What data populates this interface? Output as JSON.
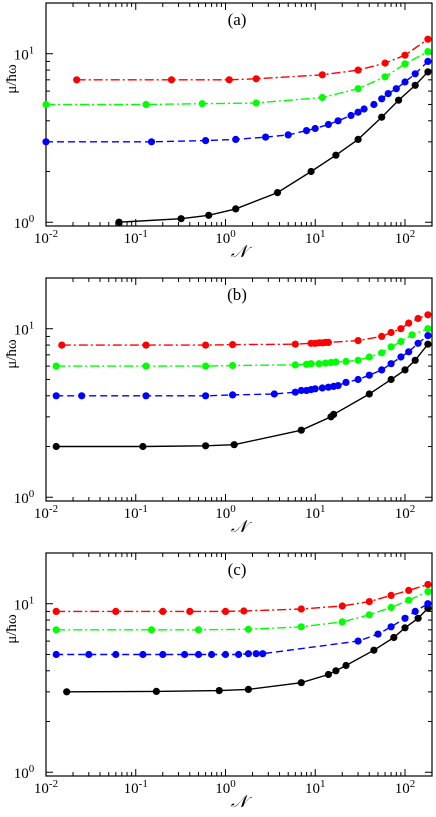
{
  "chart_data": [
    {
      "type": "line",
      "panel_label": "(a)",
      "xlabel": "𝒩",
      "ylabel": "μ/ħω",
      "x_scale": "log",
      "y_scale": "log",
      "xlim": [
        0.01,
        200
      ],
      "ylim": [
        0.95,
        20
      ],
      "x_ticks": [
        {
          "value": 0.01,
          "base": "10",
          "exp": "-2"
        },
        {
          "value": 0.1,
          "base": "10",
          "exp": "-1"
        },
        {
          "value": 1,
          "base": "10",
          "exp": "0"
        },
        {
          "value": 10,
          "base": "10",
          "exp": "1"
        },
        {
          "value": 100,
          "base": "10",
          "exp": "2"
        }
      ],
      "y_ticks": [
        {
          "value": 1,
          "base": "10",
          "exp": "0"
        },
        {
          "value": 10,
          "base": "10",
          "exp": "1"
        }
      ],
      "series": [
        {
          "color": "#000000",
          "dash": "solid",
          "x": [
            0.065,
            0.32,
            0.65,
            1.3,
            3.8,
            9,
            17,
            30,
            55,
            85,
            130,
            180
          ],
          "y": [
            1.0,
            1.05,
            1.1,
            1.2,
            1.5,
            2.0,
            2.5,
            3.1,
            4.2,
            5.3,
            6.5,
            7.8
          ]
        },
        {
          "color": "#0000ff",
          "dash": "dashed",
          "x": [
            0.01,
            0.15,
            0.6,
            1.3,
            2.8,
            5,
            8,
            10,
            14,
            18,
            25,
            30,
            35,
            45,
            55,
            65,
            80,
            100,
            130,
            180
          ],
          "y": [
            3.0,
            3.0,
            3.05,
            3.1,
            3.2,
            3.3,
            3.5,
            3.6,
            3.8,
            4.0,
            4.3,
            4.5,
            4.7,
            5.0,
            5.4,
            5.8,
            6.2,
            6.8,
            7.6,
            9.0
          ]
        },
        {
          "color": "#00ff00",
          "dash": "dashdot",
          "x": [
            0.01,
            0.13,
            0.55,
            2.2,
            12,
            30,
            60,
            100,
            180
          ],
          "y": [
            5.0,
            5.0,
            5.05,
            5.1,
            5.5,
            6.2,
            7.3,
            8.7,
            10.3
          ]
        },
        {
          "color": "#ff0000",
          "dash": "dashdot",
          "x": [
            0.022,
            0.25,
            1.1,
            2.2,
            12,
            30,
            60,
            100,
            180
          ],
          "y": [
            7.0,
            7.0,
            7.0,
            7.1,
            7.5,
            8.0,
            8.8,
            9.8,
            12.2
          ]
        }
      ]
    },
    {
      "type": "line",
      "panel_label": "(b)",
      "xlabel": "𝒩",
      "ylabel": "μ/ħω",
      "x_scale": "log",
      "y_scale": "log",
      "xlim": [
        0.01,
        200
      ],
      "ylim": [
        0.95,
        20
      ],
      "x_ticks": [
        {
          "value": 0.01,
          "base": "10",
          "exp": "-2"
        },
        {
          "value": 0.1,
          "base": "10",
          "exp": "-1"
        },
        {
          "value": 1,
          "base": "10",
          "exp": "0"
        },
        {
          "value": 10,
          "base": "10",
          "exp": "1"
        },
        {
          "value": 100,
          "base": "10",
          "exp": "2"
        }
      ],
      "y_ticks": [
        {
          "value": 1,
          "base": "10",
          "exp": "0"
        },
        {
          "value": 10,
          "base": "10",
          "exp": "1"
        }
      ],
      "series": [
        {
          "color": "#000000",
          "dash": "solid",
          "x": [
            0.013,
            0.12,
            0.6,
            1.25,
            7,
            15,
            16,
            40,
            70,
            100,
            130,
            180
          ],
          "y": [
            2.0,
            2.0,
            2.02,
            2.05,
            2.5,
            3.0,
            3.1,
            4.1,
            5.0,
            5.7,
            6.5,
            8.1
          ]
        },
        {
          "color": "#0000ff",
          "dash": "dashed",
          "x": [
            0.013,
            0.025,
            0.13,
            0.6,
            1.2,
            3.5,
            6,
            7,
            8,
            9,
            10,
            12,
            14,
            16,
            18,
            22,
            30,
            40,
            55,
            70,
            90,
            110,
            140,
            180
          ],
          "y": [
            4.0,
            4.0,
            4.0,
            4.0,
            4.05,
            4.1,
            4.2,
            4.3,
            4.3,
            4.35,
            4.4,
            4.45,
            4.5,
            4.55,
            4.6,
            4.8,
            5.0,
            5.3,
            5.7,
            6.2,
            6.8,
            7.3,
            8.2,
            9.1
          ]
        },
        {
          "color": "#00ff00",
          "dash": "dashdot",
          "x": [
            0.013,
            0.13,
            0.6,
            1.2,
            6,
            8,
            9,
            11,
            13,
            15,
            17,
            22,
            30,
            40,
            55,
            70,
            90,
            120,
            180
          ],
          "y": [
            6.0,
            6.0,
            6.0,
            6.05,
            6.1,
            6.15,
            6.2,
            6.2,
            6.25,
            6.3,
            6.35,
            6.4,
            6.5,
            6.8,
            7.2,
            7.8,
            8.4,
            9.2,
            10.0
          ]
        },
        {
          "color": "#ff0000",
          "dash": "dashdot",
          "x": [
            0.015,
            0.13,
            0.6,
            1.2,
            6,
            9,
            10,
            11,
            12,
            13,
            14,
            30,
            55,
            70,
            90,
            110,
            140,
            180
          ],
          "y": [
            8.0,
            8.0,
            8.0,
            8.05,
            8.1,
            8.2,
            8.2,
            8.25,
            8.25,
            8.3,
            8.3,
            8.5,
            9.0,
            9.5,
            10.0,
            10.8,
            11.5,
            12.1
          ]
        }
      ]
    },
    {
      "type": "line",
      "panel_label": "(c)",
      "xlabel": "𝒩",
      "ylabel": "μ/ħω",
      "x_scale": "log",
      "y_scale": "log",
      "xlim": [
        0.01,
        200
      ],
      "ylim": [
        0.95,
        20
      ],
      "x_ticks": [
        {
          "value": 0.01,
          "base": "10",
          "exp": "-2"
        },
        {
          "value": 0.1,
          "base": "10",
          "exp": "-1"
        },
        {
          "value": 1,
          "base": "10",
          "exp": "0"
        },
        {
          "value": 10,
          "base": "10",
          "exp": "1"
        },
        {
          "value": 100,
          "base": "10",
          "exp": "2"
        }
      ],
      "y_ticks": [
        {
          "value": 1,
          "base": "10",
          "exp": "0"
        },
        {
          "value": 10,
          "base": "10",
          "exp": "1"
        }
      ],
      "series": [
        {
          "color": "#000000",
          "dash": "solid",
          "x": [
            0.017,
            0.17,
            0.85,
            1.8,
            7,
            14,
            17,
            22,
            45,
            75,
            100,
            140,
            180
          ],
          "y": [
            3.0,
            3.02,
            3.05,
            3.1,
            3.4,
            3.8,
            4.0,
            4.3,
            5.3,
            6.3,
            7.2,
            8.2,
            9.4
          ]
        },
        {
          "color": "#0000ff",
          "dash": "dashed",
          "x": [
            0.013,
            0.03,
            0.06,
            0.12,
            0.2,
            0.35,
            0.5,
            0.7,
            1.0,
            1.4,
            1.8,
            2.2,
            2.6,
            30,
            50,
            70,
            100,
            130,
            180
          ],
          "y": [
            5.0,
            5.0,
            5.0,
            5.0,
            5.0,
            5.0,
            5.0,
            5.0,
            5.0,
            5.0,
            5.05,
            5.05,
            5.05,
            6.0,
            6.6,
            7.3,
            8.2,
            9.0,
            10.0
          ]
        },
        {
          "color": "#00ff00",
          "dash": "dashdot",
          "x": [
            0.013,
            0.15,
            0.5,
            1.8,
            7,
            20,
            40,
            70,
            110,
            180
          ],
          "y": [
            7.0,
            7.0,
            7.0,
            7.05,
            7.3,
            7.8,
            8.6,
            9.5,
            10.5,
            11.8
          ]
        },
        {
          "color": "#ff0000",
          "dash": "dashdot",
          "x": [
            0.013,
            0.06,
            0.2,
            0.4,
            1.0,
            1.6,
            7,
            20,
            40,
            70,
            110,
            180
          ],
          "y": [
            9.0,
            9.0,
            9.0,
            9.0,
            9.0,
            9.05,
            9.3,
            9.7,
            10.3,
            11.2,
            12.0,
            13.0
          ]
        }
      ]
    }
  ]
}
